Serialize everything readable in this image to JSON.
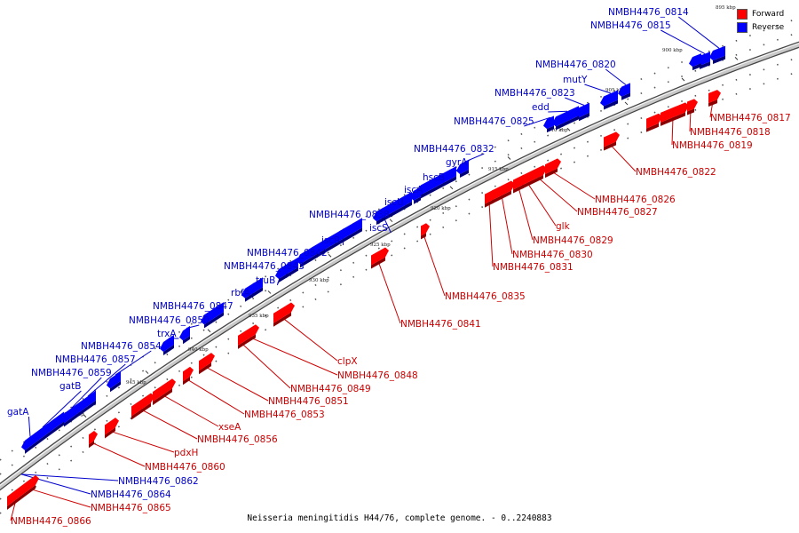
{
  "legend": [
    {
      "label": "Forward",
      "color": "#ff0000"
    },
    {
      "label": "Reverse",
      "color": "#0000ff"
    }
  ],
  "caption": "Neisseria meningitidis H44/76, complete genome. - 0..2240883",
  "ticks": [
    "895 kbp",
    "900 kbp",
    "905 kbp",
    "910 kbp",
    "915 kbp",
    "920 kbp",
    "925 kbp",
    "930 kbp",
    "935 kbp",
    "940 kbp",
    "945 kbp",
    "950 kbp"
  ],
  "reverse_labels": [
    "NMBH4476_0814",
    "NMBH4476_0815",
    "NMBH4476_0820",
    "mutY",
    "NMBH4476_0823",
    "edd",
    "NMBH4476_0825",
    "NMBH4476_0832",
    "gyrA",
    "hscB",
    "iscA",
    "iscU",
    "NMBH4476_0838",
    "iscS",
    "iscR",
    "NMBH4476_0842",
    "NMBH4476_0843",
    "truB",
    "rbfA",
    "NMBH4476_0847",
    "NMBH4476_0850",
    "trxA",
    "NMBH4476_0854",
    "NMBH4476_0857",
    "NMBH4476_0859",
    "gatB",
    "gatA",
    "NMBH4476_0862",
    "NMBH4476_0864"
  ],
  "forward_labels": [
    "NMBH4476_0817",
    "NMBH4476_0818",
    "NMBH4476_0819",
    "NMBH4476_0822",
    "NMBH4476_0826",
    "NMBH4476_0827",
    "glk",
    "NMBH4476_0829",
    "NMBH4476_0830",
    "NMBH4476_0831",
    "NMBH4476_0835",
    "NMBH4476_0841",
    "clpX",
    "NMBH4476_0848",
    "NMBH4476_0849",
    "NMBH4476_0851",
    "NMBH4476_0853",
    "xseA",
    "NMBH4476_0856",
    "pdxH",
    "NMBH4476_0860",
    "NMBH4476_0865",
    "NMBH4476_0866"
  ]
}
